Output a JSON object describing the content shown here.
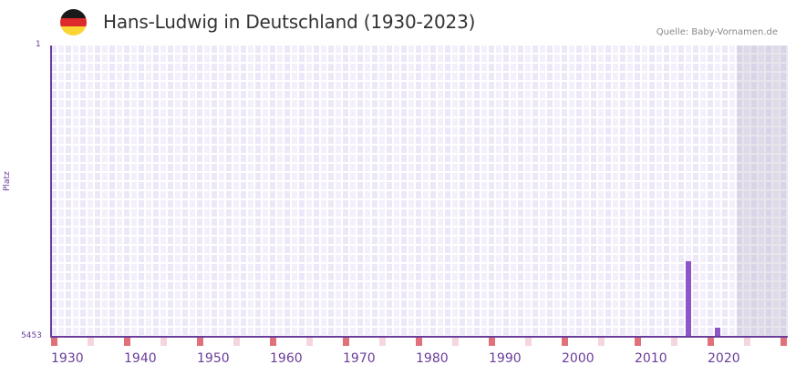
{
  "header": {
    "title": "Hans-Ludwig in Deutschland (1930-2023)",
    "source": "Quelle: Baby-Vornamen.de",
    "flag_colors": [
      "#1a1a1a",
      "#dd2a2a",
      "#fcd535"
    ]
  },
  "colors": {
    "bar": "#8e55c9",
    "axis": "#6a3d9a",
    "grid_a": "#ede8f8",
    "grid_b": "#f3f0fb",
    "decade_tick": "#e0707a",
    "half_tick": "#f5d6df"
  },
  "chart_data": {
    "type": "bar",
    "title": "Hans-Ludwig in Deutschland (1930-2023)",
    "xlabel": "",
    "ylabel": "Platz",
    "y_inverted": true,
    "ylim": [
      1,
      5453
    ],
    "y_tick_labels": [
      "1",
      "5453"
    ],
    "x_range": [
      1930,
      2030
    ],
    "x_tick_labels": [
      "1930",
      "1940",
      "1950",
      "1960",
      "1970",
      "1980",
      "1990",
      "2000",
      "2010",
      "2020"
    ],
    "future_shaded_from": 2024,
    "grid": true,
    "legend": "none",
    "categories": [
      2017,
      2021
    ],
    "values": [
      4040,
      5280
    ],
    "series": [
      {
        "name": "Platz",
        "x": [
          2017,
          2021
        ],
        "values": [
          4040,
          5280
        ]
      }
    ]
  }
}
